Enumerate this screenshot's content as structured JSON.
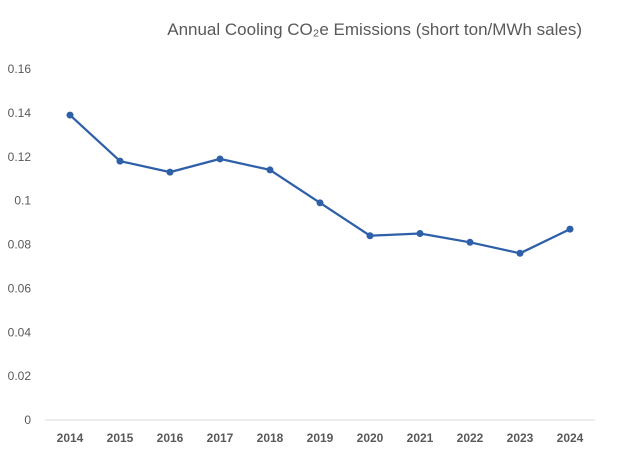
{
  "chart_data": {
    "type": "line",
    "title": "Annual Cooling CO₂e Emissions (short ton/MWh sales)",
    "xlabel": "",
    "ylabel": "",
    "categories": [
      "2014",
      "2015",
      "2016",
      "2017",
      "2018",
      "2019",
      "2020",
      "2021",
      "2022",
      "2023",
      "2024"
    ],
    "series": [
      {
        "values": [
          0.139,
          0.118,
          0.113,
          0.119,
          0.114,
          0.099,
          0.084,
          0.085,
          0.081,
          0.076,
          0.087
        ]
      }
    ],
    "ylim": [
      0,
      0.16
    ],
    "yticks": [
      "0",
      "0.02",
      "0.04",
      "0.06",
      "0.08",
      "0.1",
      "0.12",
      "0.14",
      "0.16"
    ],
    "grid": false,
    "legend": "none",
    "colors": {
      "line": "#2E5FA9",
      "axis": "#D9D9D9",
      "text": "#595959"
    }
  }
}
